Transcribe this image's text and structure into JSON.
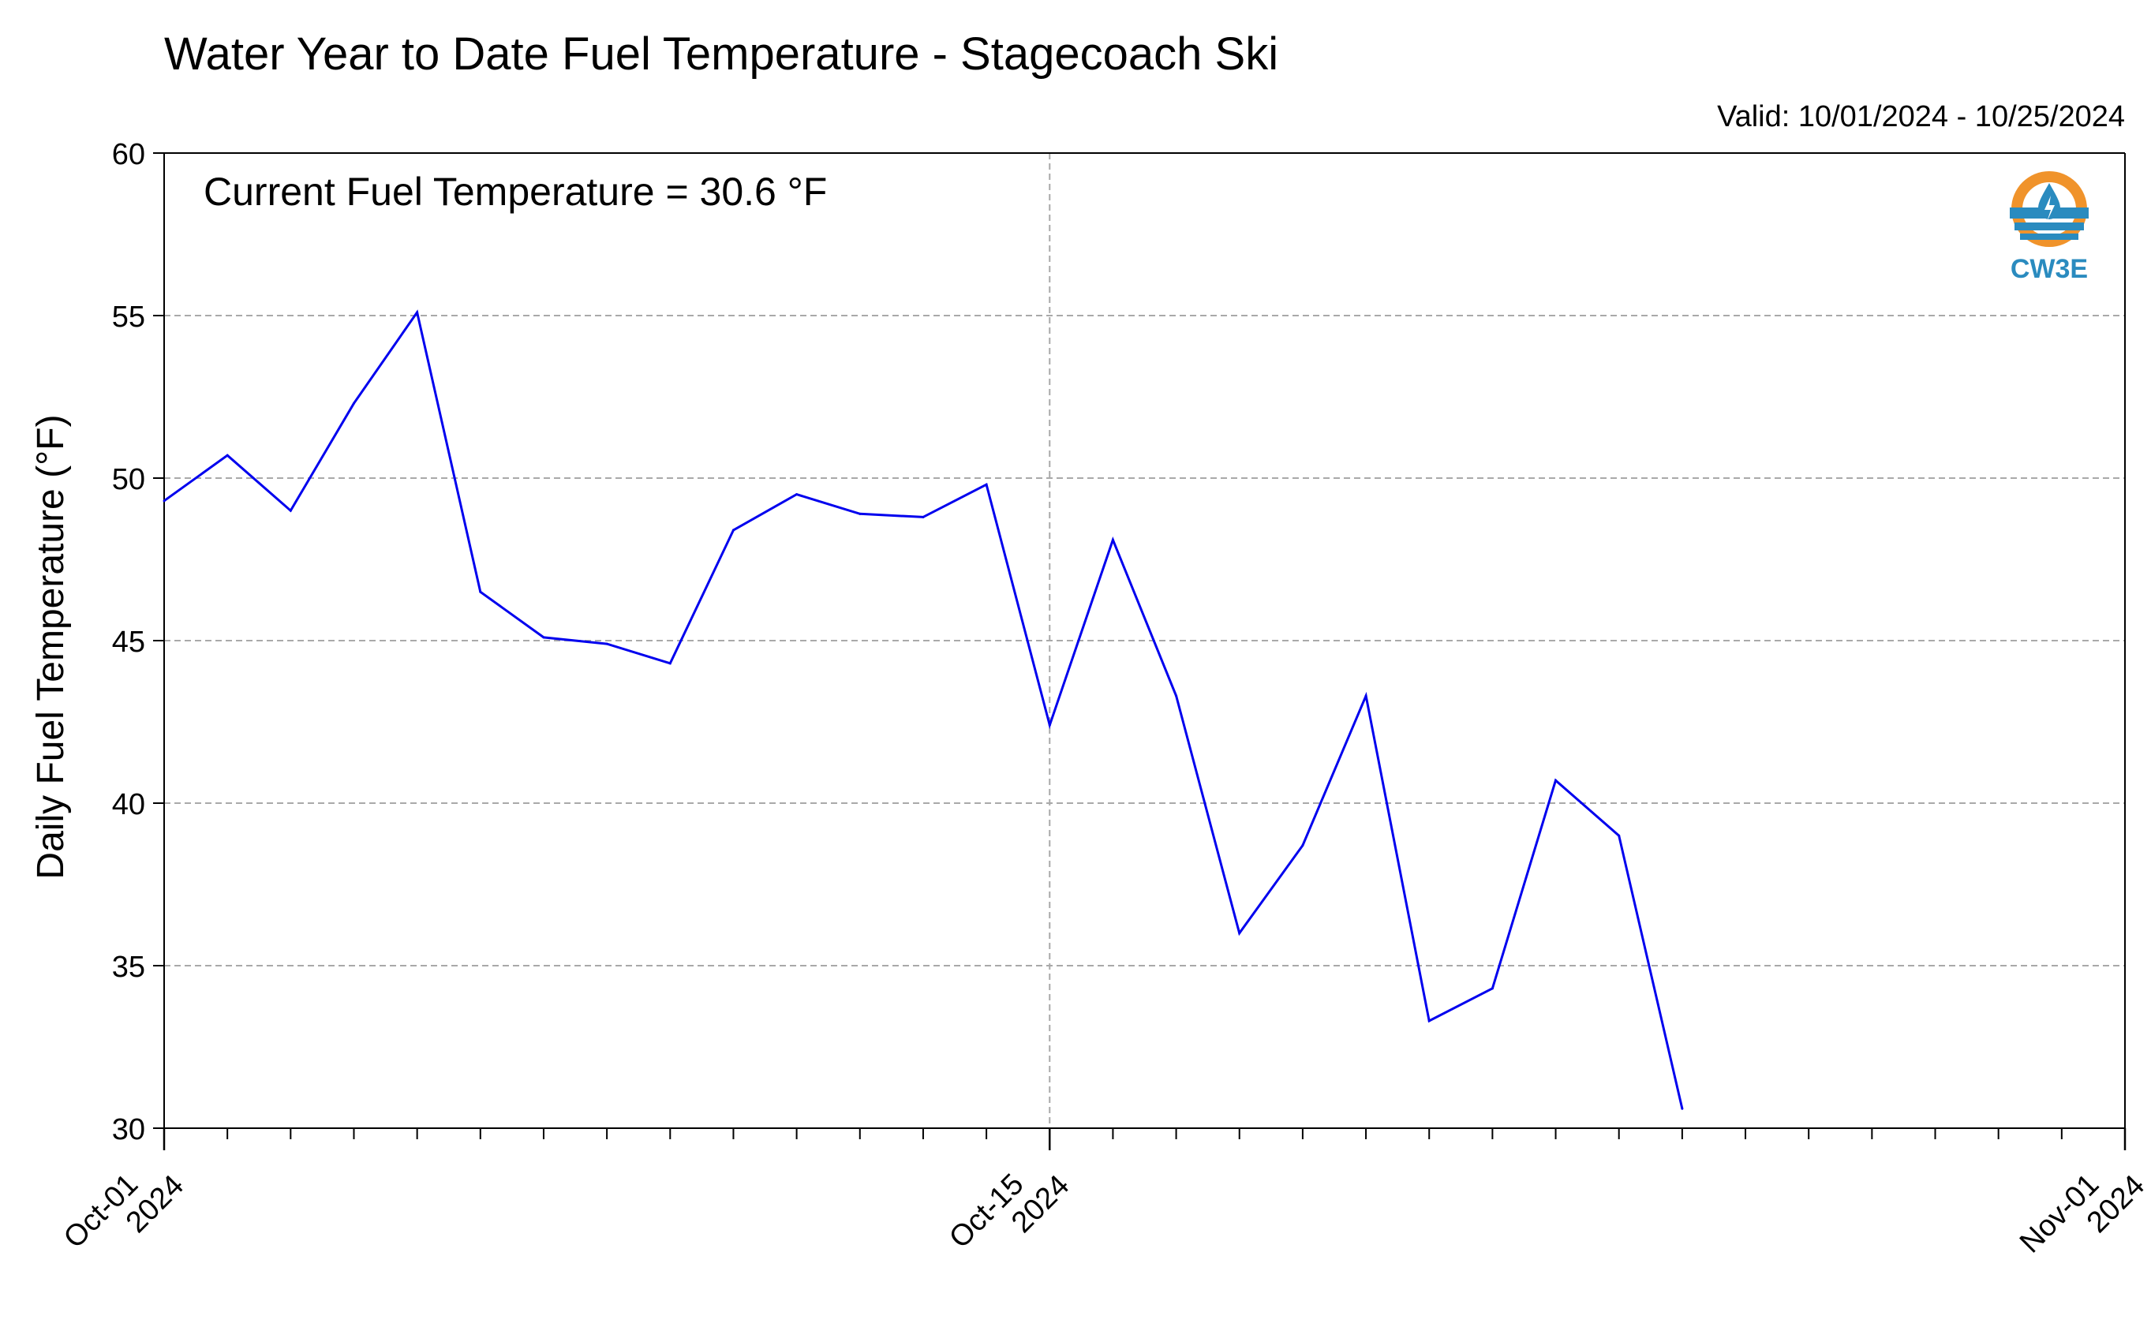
{
  "title": "Water Year to Date Fuel Temperature - Stagecoach Ski",
  "valid_label": "Valid: 10/01/2024 - 10/25/2024",
  "annotation": "Current Fuel Temperature = 30.6 °F",
  "logo": {
    "text": "CW3E",
    "icon": "cw3e-logo-icon",
    "colors": {
      "orange": "#f0932b",
      "blue": "#2a8bbf"
    }
  },
  "colors": {
    "line": "#0000ee",
    "grid": "#a9a9a9",
    "axis": "#000000"
  },
  "chart_data": {
    "type": "line",
    "ylabel": "Daily Fuel Temperature (°F)",
    "xlabel": "",
    "ylim": [
      30,
      60
    ],
    "yticks": [
      30,
      35,
      40,
      45,
      50,
      55,
      60
    ],
    "xlim": [
      "2024-10-01",
      "2024-11-01"
    ],
    "xticks": [
      {
        "date": "2024-10-01",
        "label": [
          "Oct-01",
          "2024"
        ]
      },
      {
        "date": "2024-10-15",
        "label": [
          "Oct-15",
          "2024"
        ]
      },
      {
        "date": "2024-11-01",
        "label": [
          "Nov-01",
          "2024"
        ]
      }
    ],
    "minor_ticks": "daily",
    "grid": "horizontal dashed, vertical dashed at major ticks",
    "legend": "none",
    "series": [
      {
        "x": [
          "2024-10-01",
          "2024-10-02",
          "2024-10-03",
          "2024-10-04",
          "2024-10-05",
          "2024-10-06",
          "2024-10-07",
          "2024-10-08",
          "2024-10-09",
          "2024-10-10",
          "2024-10-11",
          "2024-10-12",
          "2024-10-13",
          "2024-10-14",
          "2024-10-15",
          "2024-10-16",
          "2024-10-17",
          "2024-10-18",
          "2024-10-19",
          "2024-10-20",
          "2024-10-21",
          "2024-10-22",
          "2024-10-23",
          "2024-10-24",
          "2024-10-25"
        ],
        "values": [
          49.3,
          50.7,
          49.0,
          52.3,
          55.1,
          46.5,
          45.1,
          44.9,
          44.3,
          48.4,
          49.5,
          48.9,
          48.8,
          49.8,
          42.4,
          48.1,
          43.3,
          36.0,
          38.7,
          43.3,
          33.3,
          34.3,
          40.7,
          39.0,
          30.6
        ]
      }
    ]
  }
}
